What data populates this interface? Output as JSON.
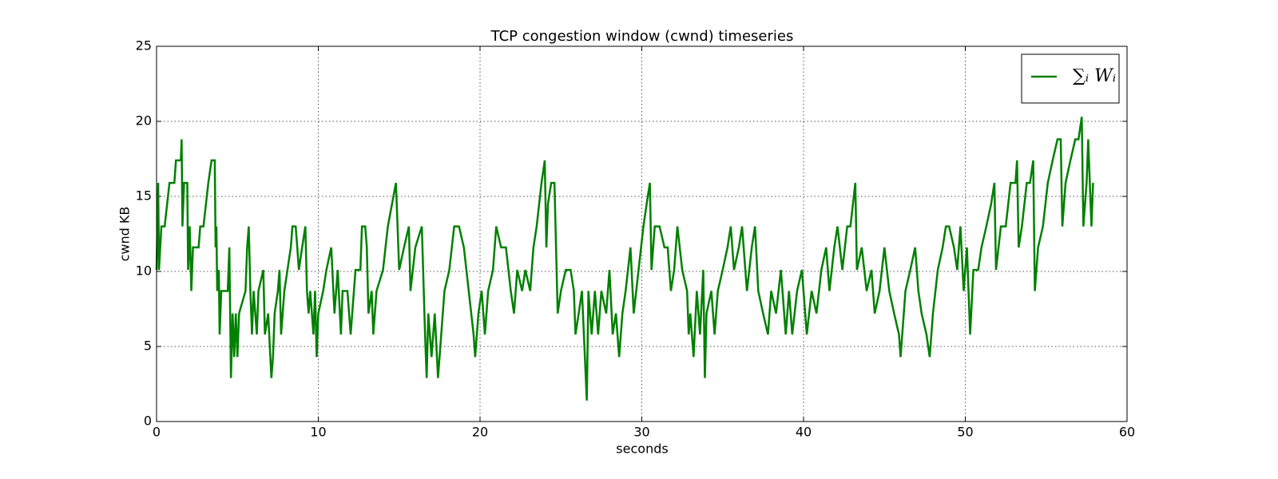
{
  "chart_data": {
    "type": "line",
    "title": "TCP congestion window (cwnd) timeseries",
    "xlabel": "seconds",
    "ylabel": "cwnd KB",
    "xlim": [
      0,
      60
    ],
    "ylim": [
      0,
      25
    ],
    "xticks": [
      0,
      10,
      20,
      30,
      40,
      50,
      60
    ],
    "yticks": [
      0,
      5,
      10,
      15,
      20,
      25
    ],
    "grid": true,
    "legend": "upper right",
    "x": [
      0,
      0.1,
      0.15,
      0.3,
      0.5,
      0.8,
      1.1,
      1.2,
      1.5,
      1.55,
      1.6,
      1.7,
      1.9,
      1.95,
      2.05,
      2.15,
      2.25,
      2.6,
      2.7,
      2.9,
      3.2,
      3.4,
      3.6,
      3.65,
      3.7,
      3.75,
      3.85,
      3.9,
      4.0,
      4.4,
      4.5,
      4.6,
      4.7,
      4.8,
      4.9,
      5.0,
      5.1,
      5.5,
      5.6,
      5.7,
      5.8,
      5.9,
      6.0,
      6.2,
      6.3,
      6.6,
      6.7,
      6.9,
      7.1,
      7.2,
      7.3,
      7.5,
      7.6,
      7.7,
      7.9,
      8.3,
      8.4,
      8.6,
      8.7,
      8.8,
      9.0,
      9.2,
      9.3,
      9.4,
      9.5,
      9.7,
      9.8,
      9.9,
      10.0,
      10.3,
      10.5,
      10.8,
      11.0,
      11.2,
      11.4,
      11.5,
      11.8,
      12.0,
      12.3,
      12.6,
      12.7,
      12.9,
      13.0,
      13.1,
      13.3,
      13.4,
      13.6,
      14.0,
      14.3,
      14.8,
      14.9,
      15.0,
      15.3,
      15.6,
      15.7,
      16.0,
      16.4,
      16.6,
      16.7,
      16.8,
      17.0,
      17.2,
      17.4,
      17.6,
      17.8,
      18.1,
      18.4,
      18.7,
      19.0,
      19.3,
      19.6,
      19.7,
      19.9,
      20.1,
      20.3,
      20.5,
      20.8,
      21.0,
      21.3,
      21.6,
      21.9,
      22.1,
      22.3,
      22.6,
      22.8,
      23.1,
      23.3,
      23.5,
      23.8,
      24.0,
      24.1,
      24.2,
      24.4,
      24.6,
      24.8,
      25.0,
      25.3,
      25.6,
      25.8,
      25.9,
      26.1,
      26.3,
      26.6,
      26.7,
      26.9,
      27.1,
      27.3,
      27.5,
      27.8,
      28.0,
      28.2,
      28.4,
      28.6,
      28.8,
      29.0,
      29.3,
      29.5,
      29.8,
      30.1,
      30.3,
      30.5,
      30.6,
      30.8,
      31.1,
      31.4,
      31.6,
      31.8,
      32.0,
      32.2,
      32.5,
      32.8,
      32.9,
      33.0,
      33.2,
      33.4,
      33.6,
      33.8,
      33.9,
      34.0,
      34.3,
      34.5,
      34.7,
      35.0,
      35.3,
      35.5,
      35.7,
      36.0,
      36.2,
      36.5,
      36.8,
      37.0,
      37.2,
      37.5,
      37.8,
      38.0,
      38.3,
      38.6,
      38.9,
      39.1,
      39.3,
      39.6,
      39.9,
      40.2,
      40.5,
      40.8,
      41.1,
      41.4,
      41.6,
      41.9,
      42.1,
      42.4,
      42.7,
      42.9,
      43.2,
      43.3,
      43.6,
      43.9,
      44.2,
      44.4,
      44.7,
      45.0,
      45.3,
      45.6,
      45.9,
      46.0,
      46.3,
      46.6,
      46.9,
      47.1,
      47.3,
      47.6,
      47.8,
      48.0,
      48.3,
      48.6,
      48.8,
      49.0,
      49.3,
      49.5,
      49.7,
      49.9,
      50.1,
      50.3,
      50.5,
      50.8,
      51.0,
      51.3,
      51.6,
      51.8,
      51.9,
      52.2,
      52.5,
      52.8,
      53.1,
      53.2,
      53.3,
      53.5,
      53.8,
      54.0,
      54.2,
      54.3,
      54.5,
      54.8,
      55.1,
      55.4,
      55.7,
      55.9,
      56.0,
      56.2,
      56.5,
      56.8,
      57.0,
      57.2,
      57.3,
      57.5,
      57.6,
      57.7,
      57.8,
      57.9
    ],
    "series": [
      {
        "name": "∑ᵢ Wᵢ",
        "color": "#008000",
        "values": [
          10.1,
          15.9,
          10.1,
          13.0,
          13.0,
          15.9,
          15.9,
          17.4,
          17.4,
          18.8,
          13.0,
          15.9,
          15.9,
          10.1,
          13.0,
          8.7,
          11.6,
          11.6,
          13.0,
          13.0,
          15.9,
          17.4,
          17.4,
          11.6,
          13.0,
          8.7,
          10.1,
          5.8,
          8.7,
          8.7,
          11.6,
          2.9,
          7.2,
          4.3,
          7.2,
          4.3,
          7.2,
          8.7,
          11.6,
          13.0,
          8.7,
          5.8,
          8.7,
          5.8,
          8.7,
          10.1,
          5.8,
          7.2,
          2.9,
          4.3,
          7.2,
          8.7,
          10.1,
          5.8,
          8.7,
          11.6,
          13.0,
          13.0,
          11.6,
          10.1,
          11.6,
          13.0,
          8.7,
          7.2,
          8.7,
          5.8,
          8.7,
          4.3,
          7.2,
          8.7,
          10.1,
          11.6,
          7.2,
          10.1,
          5.8,
          8.7,
          8.7,
          5.8,
          10.1,
          10.1,
          13.0,
          13.0,
          11.6,
          7.2,
          8.7,
          5.8,
          8.7,
          10.1,
          13.0,
          15.9,
          13.0,
          10.1,
          11.6,
          13.0,
          8.7,
          11.6,
          13.0,
          5.8,
          2.9,
          7.2,
          4.3,
          7.2,
          2.9,
          5.8,
          8.7,
          10.1,
          13.0,
          13.0,
          11.6,
          8.7,
          5.8,
          4.3,
          7.2,
          8.7,
          5.8,
          8.7,
          10.1,
          13.0,
          11.6,
          11.6,
          8.7,
          7.2,
          10.1,
          8.7,
          10.1,
          8.7,
          11.6,
          13.0,
          15.9,
          17.4,
          11.6,
          14.5,
          15.9,
          15.9,
          7.2,
          8.7,
          10.1,
          10.1,
          8.7,
          5.8,
          7.2,
          8.7,
          1.4,
          8.7,
          5.8,
          8.7,
          5.8,
          8.7,
          7.2,
          10.1,
          5.8,
          7.2,
          4.3,
          7.2,
          8.7,
          11.6,
          7.2,
          10.1,
          13.0,
          14.5,
          15.9,
          10.1,
          13.0,
          13.0,
          11.6,
          11.6,
          8.7,
          10.1,
          13.0,
          10.1,
          8.7,
          5.8,
          7.2,
          4.3,
          8.7,
          5.8,
          10.1,
          2.9,
          7.2,
          8.7,
          5.8,
          8.7,
          10.1,
          11.6,
          13.0,
          10.1,
          11.6,
          13.0,
          8.7,
          11.6,
          13.0,
          8.7,
          7.2,
          5.8,
          8.7,
          7.2,
          10.1,
          5.8,
          8.7,
          5.8,
          8.7,
          10.1,
          5.8,
          8.7,
          7.2,
          10.1,
          11.6,
          8.7,
          11.6,
          13.0,
          10.1,
          13.0,
          13.0,
          15.9,
          10.1,
          11.6,
          8.7,
          10.1,
          7.2,
          8.7,
          11.6,
          8.7,
          7.2,
          5.8,
          4.3,
          8.7,
          10.1,
          11.6,
          8.7,
          7.2,
          5.8,
          4.3,
          7.2,
          10.1,
          11.6,
          13.0,
          13.0,
          11.6,
          10.1,
          13.0,
          8.7,
          11.6,
          5.8,
          10.1,
          10.1,
          11.6,
          13.0,
          14.5,
          15.9,
          10.1,
          13.0,
          13.0,
          15.9,
          15.9,
          17.4,
          11.6,
          13.0,
          15.9,
          15.9,
          17.4,
          8.7,
          11.6,
          13.0,
          15.9,
          17.4,
          18.8,
          18.8,
          13.0,
          15.9,
          17.4,
          18.8,
          18.8,
          20.3,
          13.0,
          15.9,
          18.8,
          15.9,
          13.0,
          15.9
        ]
      }
    ]
  }
}
